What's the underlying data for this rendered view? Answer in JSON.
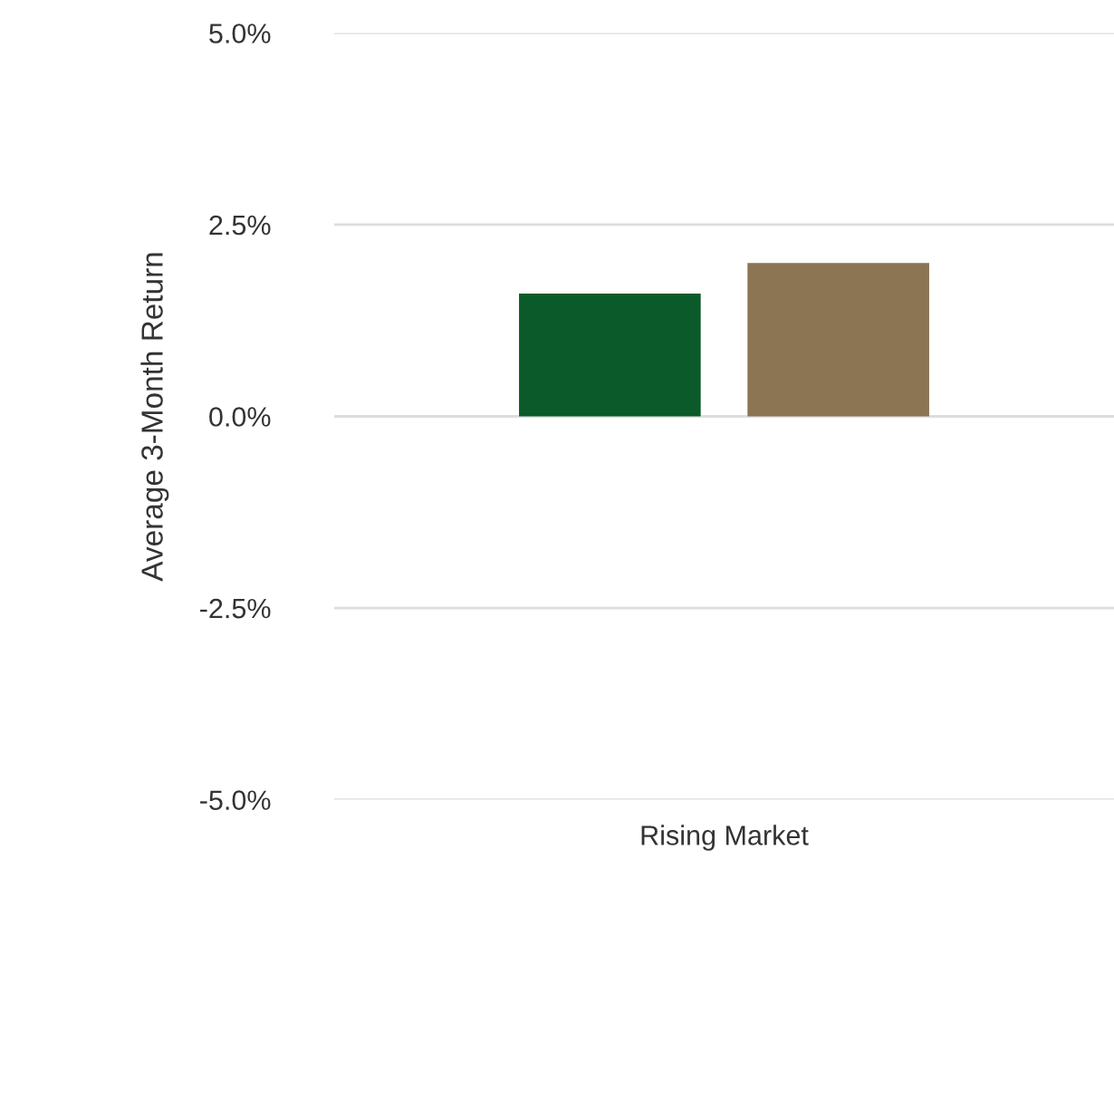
{
  "chart_data": {
    "type": "bar",
    "ylabel": "Average 3-Month Return",
    "categories": [
      "Rising Market"
    ],
    "series": [
      {
        "color": "#0b5a2a",
        "values": [
          1.6
        ]
      },
      {
        "color": "#8b7552",
        "values": [
          2.0
        ]
      }
    ],
    "ylim": [
      -5.0,
      5.0
    ],
    "yticks": [
      {
        "value": -5.0,
        "label": "-5.0%"
      },
      {
        "value": -2.5,
        "label": "-2.5%"
      },
      {
        "value": 0,
        "label": "0.0%"
      },
      {
        "value": 2.5,
        "label": "2.5%"
      },
      {
        "value": 5.0,
        "label": "5.0%"
      }
    ],
    "grid": "y"
  }
}
